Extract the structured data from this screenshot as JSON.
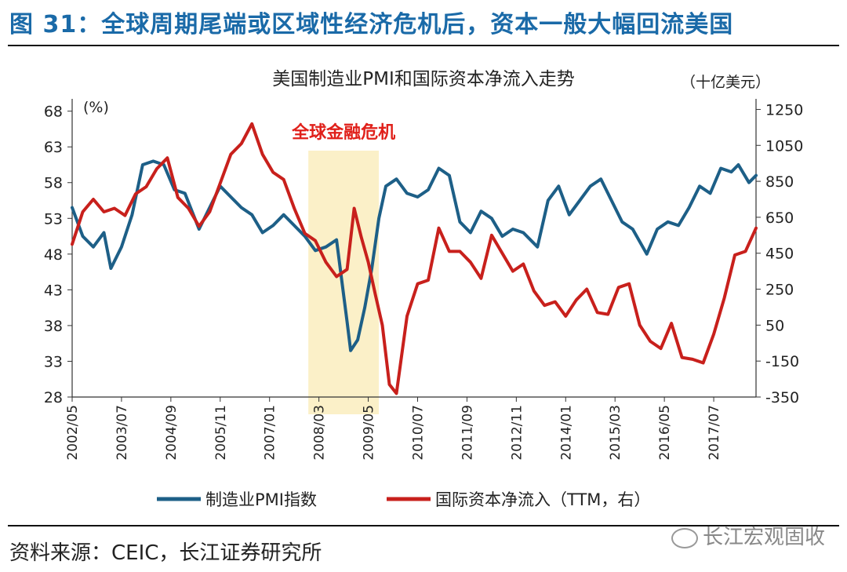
{
  "figure_title": "图 31：全球周期尾端或区域性经济危机后，资本一般大幅回流美国",
  "source": "资料来源：CEIC，长江证券研究所",
  "watermark": "长江宏观固收",
  "colors": {
    "pmi": "#1d5f87",
    "flow": "#c8201c",
    "shade": "#fbf0c8",
    "annotation": "#e0201a",
    "title_blue": "#1a6aa8"
  },
  "chart_data": {
    "type": "line",
    "title": "美国制造业PMI和国际资本净流入走势",
    "left_axis_unit": "(%)",
    "right_axis_unit": "（十亿美元）",
    "yleft_ticks": [
      28,
      33,
      38,
      43,
      48,
      53,
      58,
      63,
      68
    ],
    "yleft_lim": [
      28,
      69.5
    ],
    "yright_ticks": [
      1250,
      1050,
      850,
      650,
      450,
      250,
      50,
      -150,
      -350
    ],
    "yright_lim": [
      -350,
      1300
    ],
    "x_tick_labels": [
      "2002/05",
      "2003/07",
      "2004/09",
      "2005/11",
      "2007/01",
      "2008/03",
      "2009/05",
      "2010/07",
      "2011/09",
      "2012/11",
      "2014/01",
      "2015/03",
      "2016/05",
      "2017/07"
    ],
    "x_range": [
      "2002/05",
      "2018/07"
    ],
    "annotation": {
      "text": "全球金融危机",
      "start": "2007/12",
      "end": "2009/08"
    },
    "legend": [
      {
        "name": "制造业PMI指数"
      },
      {
        "name": "国际资本净流入（TTM，右）"
      }
    ],
    "legend_placement": "bottom",
    "grid": false,
    "series": [
      {
        "name": "制造业PMI指数",
        "axis": "left",
        "x": [
          "2002/05",
          "2002/08",
          "2002/11",
          "2003/02",
          "2003/04",
          "2003/07",
          "2003/10",
          "2004/01",
          "2004/04",
          "2004/07",
          "2004/10",
          "2005/01",
          "2005/05",
          "2005/08",
          "2005/11",
          "2006/02",
          "2006/05",
          "2006/08",
          "2006/11",
          "2007/02",
          "2007/05",
          "2007/08",
          "2007/11",
          "2008/02",
          "2008/05",
          "2008/08",
          "2008/11",
          "2008/12",
          "2009/02",
          "2009/04",
          "2009/06",
          "2009/08",
          "2009/10",
          "2010/01",
          "2010/04",
          "2010/07",
          "2010/10",
          "2011/01",
          "2011/04",
          "2011/07",
          "2011/10",
          "2012/01",
          "2012/04",
          "2012/07",
          "2012/10",
          "2013/01",
          "2013/05",
          "2013/08",
          "2013/11",
          "2014/02",
          "2014/05",
          "2014/08",
          "2014/11",
          "2015/02",
          "2015/05",
          "2015/08",
          "2015/12",
          "2016/03",
          "2016/06",
          "2016/09",
          "2016/12",
          "2017/03",
          "2017/06",
          "2017/09",
          "2017/12",
          "2018/02",
          "2018/05",
          "2018/07"
        ],
        "values": [
          54.5,
          50.5,
          49.0,
          51.0,
          46.0,
          49.0,
          53.5,
          60.5,
          61.0,
          60.5,
          57.0,
          56.5,
          51.5,
          54.5,
          57.5,
          56.0,
          54.5,
          53.5,
          51.0,
          52.0,
          53.5,
          52.0,
          50.5,
          48.5,
          49.0,
          50.0,
          38.5,
          34.5,
          36.0,
          40.5,
          46.0,
          53.0,
          57.5,
          58.5,
          56.5,
          56.0,
          57.0,
          60.0,
          59.0,
          52.5,
          51.0,
          54.0,
          53.0,
          50.5,
          51.5,
          51.0,
          49.0,
          55.5,
          57.5,
          53.5,
          55.5,
          57.5,
          58.5,
          55.5,
          52.5,
          51.5,
          48.0,
          51.5,
          52.5,
          52.0,
          54.5,
          57.5,
          56.5,
          60.0,
          59.5,
          60.5,
          58.0,
          59.0
        ]
      },
      {
        "name": "国际资本净流入（TTM，右）",
        "axis": "right",
        "x": [
          "2002/05",
          "2002/08",
          "2002/11",
          "2003/02",
          "2003/05",
          "2003/08",
          "2003/11",
          "2004/02",
          "2004/05",
          "2004/08",
          "2004/11",
          "2005/02",
          "2005/05",
          "2005/08",
          "2005/11",
          "2006/02",
          "2006/05",
          "2006/08",
          "2006/11",
          "2007/02",
          "2007/05",
          "2007/08",
          "2007/11",
          "2008/02",
          "2008/05",
          "2008/08",
          "2008/11",
          "2009/01",
          "2009/03",
          "2009/05",
          "2009/07",
          "2009/09",
          "2009/11",
          "2010/01",
          "2010/04",
          "2010/07",
          "2010/10",
          "2011/01",
          "2011/04",
          "2011/07",
          "2011/10",
          "2012/01",
          "2012/04",
          "2012/07",
          "2012/10",
          "2013/01",
          "2013/04",
          "2013/07",
          "2013/10",
          "2014/01",
          "2014/04",
          "2014/07",
          "2014/10",
          "2015/01",
          "2015/04",
          "2015/07",
          "2015/10",
          "2016/01",
          "2016/04",
          "2016/07",
          "2016/10",
          "2017/01",
          "2017/04",
          "2017/07",
          "2017/10",
          "2018/01",
          "2018/04",
          "2018/07"
        ],
        "values": [
          500,
          680,
          750,
          680,
          700,
          660,
          780,
          820,
          920,
          980,
          760,
          700,
          600,
          680,
          840,
          1000,
          1060,
          1170,
          1000,
          900,
          860,
          700,
          560,
          520,
          400,
          320,
          360,
          700,
          540,
          400,
          220,
          50,
          -280,
          -330,
          100,
          280,
          300,
          590,
          460,
          460,
          400,
          310,
          550,
          450,
          350,
          390,
          240,
          160,
          180,
          100,
          190,
          250,
          120,
          110,
          260,
          280,
          50,
          -40,
          -80,
          60,
          -130,
          -140,
          -160,
          0,
          200,
          440,
          460,
          590
        ]
      }
    ]
  }
}
